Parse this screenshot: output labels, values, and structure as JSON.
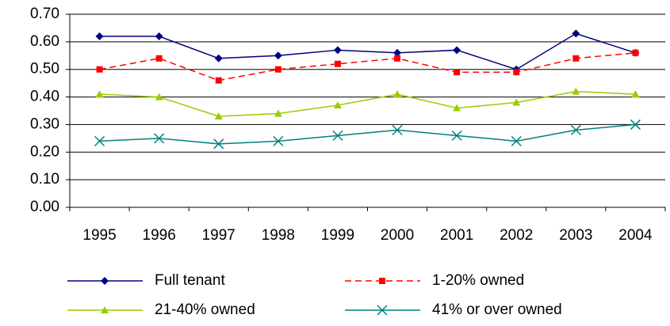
{
  "chart_data": {
    "type": "line",
    "categories": [
      "1995",
      "1996",
      "1997",
      "1998",
      "1999",
      "2000",
      "2001",
      "2002",
      "2003",
      "2004"
    ],
    "series": [
      {
        "name": "Full tenant",
        "color": "#000080",
        "marker": "diamond",
        "dash": false,
        "values": [
          0.62,
          0.62,
          0.54,
          0.55,
          0.57,
          0.56,
          0.57,
          0.5,
          0.63,
          0.56
        ]
      },
      {
        "name": "1-20% owned",
        "color": "#ff0000",
        "marker": "square",
        "dash": true,
        "values": [
          0.5,
          0.54,
          0.46,
          0.5,
          0.52,
          0.54,
          0.49,
          0.49,
          0.54,
          0.56
        ]
      },
      {
        "name": "21-40% owned",
        "color": "#99cc00",
        "marker": "triangle",
        "dash": false,
        "values": [
          0.41,
          0.4,
          0.33,
          0.34,
          0.37,
          0.41,
          0.36,
          0.38,
          0.42,
          0.41
        ]
      },
      {
        "name": "41% or over owned",
        "color": "#008080",
        "marker": "x",
        "dash": false,
        "values": [
          0.24,
          0.25,
          0.23,
          0.24,
          0.26,
          0.28,
          0.26,
          0.24,
          0.28,
          0.3
        ]
      }
    ],
    "ylim": [
      0,
      0.7
    ],
    "yticks": [
      {
        "value": 0,
        "label": "0.00"
      },
      {
        "value": 0.1,
        "label": "0.10"
      },
      {
        "value": 0.2,
        "label": "0.20"
      },
      {
        "value": 0.3,
        "label": "0.30"
      },
      {
        "value": 0.4,
        "label": "0.40"
      },
      {
        "value": 0.5,
        "label": "0.50"
      },
      {
        "value": 0.6,
        "label": "0.60"
      },
      {
        "value": 0.7,
        "label": "0.70"
      }
    ],
    "grid": true,
    "legend": "bottom"
  }
}
